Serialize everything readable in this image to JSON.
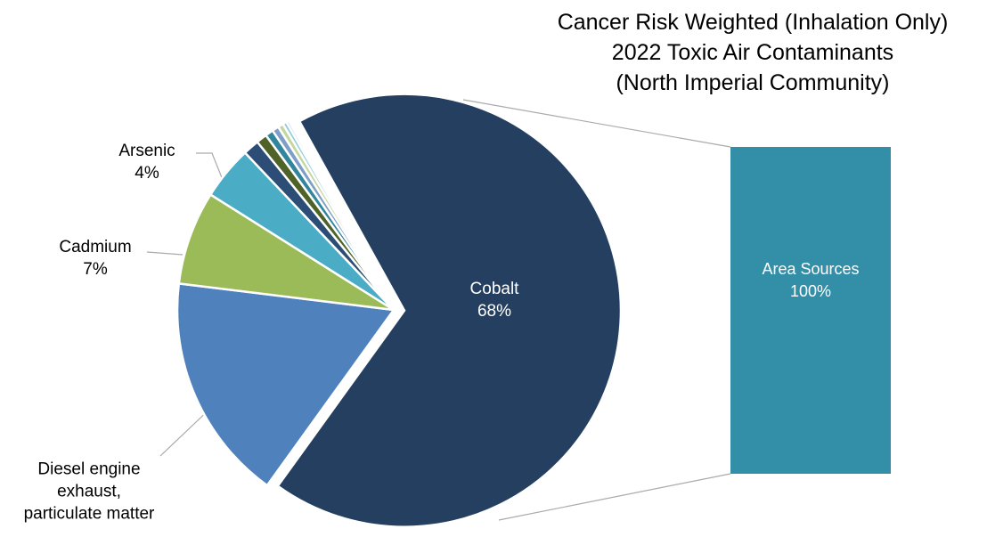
{
  "chart_data": [
    {
      "type": "pie",
      "title": [
        "Cancer Risk Weighted (Inhalation Only)",
        "2022 Toxic Air Contaminants",
        "(North Imperial Community)"
      ],
      "categories": [
        "Cobalt",
        "Diesel engine exhaust, particulate matter",
        "Cadmium",
        "Arsenic",
        null,
        null,
        null,
        null,
        null,
        null,
        null
      ],
      "values": [
        68,
        17,
        7,
        4,
        1.2,
        0.8,
        0.6,
        0.5,
        0.4,
        0.3,
        0.2
      ],
      "value_labels": [
        "68%",
        null,
        "7%",
        "4%",
        null,
        null,
        null,
        null,
        null,
        null,
        null
      ],
      "colors": [
        "#243f60",
        "#4f81bd",
        "#9bbb59",
        "#4bacc6",
        "#2c4d75",
        "#4f6228",
        "#31859c",
        "#7f9fc8",
        "#c3d69b",
        "#93cddd",
        "#b9cde5"
      ]
    },
    {
      "type": "bar",
      "categories": [
        "Area Sources"
      ],
      "values": [
        100
      ],
      "value_labels": [
        "100%"
      ],
      "color": "#338ea8"
    }
  ]
}
